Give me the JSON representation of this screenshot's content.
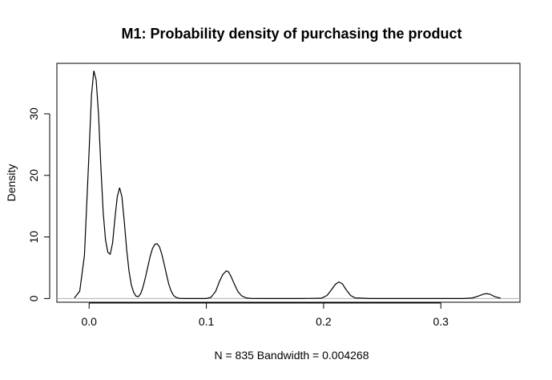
{
  "chart_data": {
    "type": "line",
    "title": "M1: Probability density of purchasing the product",
    "xlabel": "N = 835   Bandwidth = 0.004268",
    "ylabel": "Density",
    "xlim": [
      -0.0275,
      0.3675
    ],
    "ylim": [
      -0.6,
      38.2
    ],
    "x_ticks": [
      0.0,
      0.1,
      0.2,
      0.3
    ],
    "x_tick_labels": [
      "0.0",
      "0.1",
      "0.2",
      "0.3"
    ],
    "y_ticks": [
      0,
      10,
      20,
      30
    ],
    "y_tick_labels": [
      "0",
      "10",
      "20",
      "30"
    ],
    "grid": false,
    "legend": "none",
    "baseline": 0,
    "series": [
      {
        "color": "#000000",
        "x": [
          -0.0125,
          -0.008,
          -0.004,
          0.0,
          0.002,
          0.004,
          0.006,
          0.008,
          0.01,
          0.012,
          0.014,
          0.016,
          0.018,
          0.02,
          0.022,
          0.024,
          0.026,
          0.028,
          0.03,
          0.032,
          0.034,
          0.036,
          0.038,
          0.04,
          0.042,
          0.044,
          0.046,
          0.048,
          0.05,
          0.052,
          0.054,
          0.056,
          0.058,
          0.06,
          0.062,
          0.064,
          0.066,
          0.068,
          0.07,
          0.072,
          0.074,
          0.076,
          0.078,
          0.08,
          0.09,
          0.1,
          0.104,
          0.108,
          0.111,
          0.114,
          0.117,
          0.119,
          0.121,
          0.124,
          0.127,
          0.13,
          0.134,
          0.138,
          0.145,
          0.16,
          0.18,
          0.198,
          0.203,
          0.207,
          0.21,
          0.213,
          0.216,
          0.219,
          0.223,
          0.227,
          0.24,
          0.28,
          0.32,
          0.327,
          0.332,
          0.336,
          0.339,
          0.342,
          0.346,
          0.351
        ],
        "y": [
          0.1,
          1.2,
          7.0,
          24.0,
          33.0,
          37.0,
          35.5,
          30.0,
          21.5,
          14.0,
          9.5,
          7.5,
          7.2,
          9.0,
          13.0,
          16.5,
          18.0,
          16.5,
          12.5,
          8.0,
          4.5,
          2.2,
          1.0,
          0.4,
          0.3,
          0.8,
          1.9,
          3.4,
          5.1,
          6.8,
          8.1,
          8.8,
          8.9,
          8.4,
          7.2,
          5.6,
          3.9,
          2.3,
          1.2,
          0.5,
          0.2,
          0.07,
          0.02,
          0.0,
          0.0,
          0.0,
          0.2,
          1.2,
          2.7,
          3.9,
          4.5,
          4.3,
          3.6,
          2.3,
          1.1,
          0.45,
          0.1,
          0.02,
          0.0,
          0.0,
          0.0,
          0.05,
          0.5,
          1.5,
          2.3,
          2.7,
          2.4,
          1.5,
          0.5,
          0.1,
          0.0,
          0.0,
          0.0,
          0.1,
          0.4,
          0.7,
          0.8,
          0.7,
          0.3,
          0.05
        ]
      }
    ]
  }
}
